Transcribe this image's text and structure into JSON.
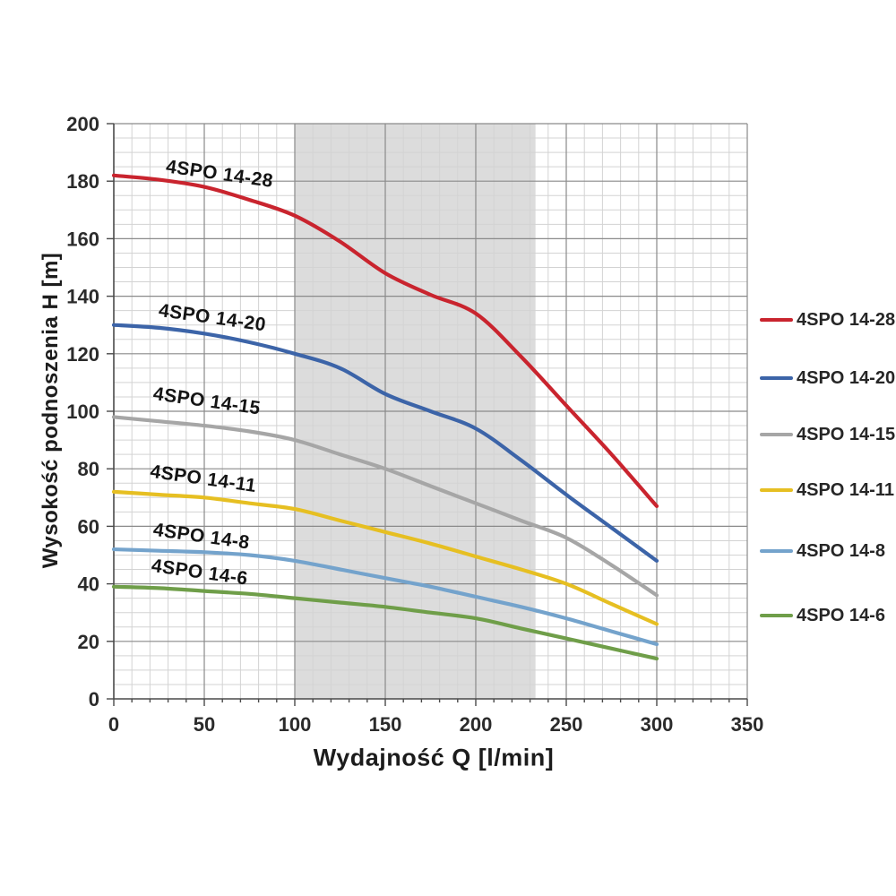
{
  "chart_data": {
    "type": "line",
    "title": "",
    "xlabel": "Wydajność Q [l/min]",
    "ylabel": "Wysokość podnoszenia H [m]",
    "xlim": [
      0,
      350
    ],
    "ylim": [
      0,
      200
    ],
    "x_ticks": [
      0,
      50,
      100,
      150,
      200,
      250,
      300,
      350
    ],
    "y_ticks": [
      0,
      20,
      40,
      60,
      80,
      100,
      120,
      140,
      160,
      180,
      200
    ],
    "x_minor_step": 10,
    "y_minor_step": 5,
    "grid": "both",
    "legend_position": "right",
    "shaded_band": {
      "x_start": 100,
      "x_end": 233,
      "color": "#dcdcdc"
    },
    "x": [
      0,
      25,
      50,
      75,
      100,
      125,
      150,
      175,
      200,
      225,
      250,
      275,
      300
    ],
    "series": [
      {
        "name": "4SPO 14-28",
        "color": "#c9242e",
        "values": [
          182,
          180.5,
          178,
          173.5,
          168,
          159,
          148,
          140.5,
          134,
          119,
          102,
          85,
          67
        ],
        "label": {
          "q": 58,
          "h": 180.5,
          "angle": 8
        }
      },
      {
        "name": "4SPO 14-20",
        "color": "#3c64a8",
        "values": [
          130,
          129,
          127,
          124,
          120,
          115,
          106,
          100,
          94,
          83,
          71,
          59.5,
          48
        ],
        "label": {
          "q": 54,
          "h": 130.5,
          "angle": 8
        }
      },
      {
        "name": "4SPO 14-15",
        "color": "#a6a6a6",
        "values": [
          98,
          96.5,
          95,
          93,
          90,
          85,
          80,
          74,
          68,
          62,
          56,
          46.5,
          36
        ],
        "label": {
          "q": 51,
          "h": 101.5,
          "angle": 8
        }
      },
      {
        "name": "4SPO 14-11",
        "color": "#e6bf22",
        "values": [
          72,
          71,
          70,
          68,
          66,
          62,
          58,
          54,
          49.5,
          45,
          40,
          33,
          26
        ],
        "label": {
          "q": 49,
          "h": 74.5,
          "angle": 8
        }
      },
      {
        "name": "4SPO 14-8",
        "color": "#74a3cc",
        "values": [
          52,
          51.5,
          51,
          50,
          48,
          45,
          42,
          39,
          35.5,
          32,
          28,
          23.5,
          19
        ],
        "label": {
          "q": 48,
          "h": 54.5,
          "angle": 8
        }
      },
      {
        "name": "4SPO 14-6",
        "color": "#6f9e49",
        "values": [
          39,
          38.5,
          37.5,
          36.5,
          35,
          33.5,
          32,
          30,
          28,
          24.5,
          21,
          17.5,
          14
        ],
        "label": {
          "q": 47,
          "h": 42,
          "angle": 8
        }
      }
    ],
    "style": {
      "grid_minor_color": "#d3d3d3",
      "grid_major_color": "#8a8a8a",
      "axis_color": "#4a4a4a",
      "tick_label_color": "#2b2b2b",
      "curve_label_color": "#141414",
      "background": "#ffffff"
    }
  }
}
